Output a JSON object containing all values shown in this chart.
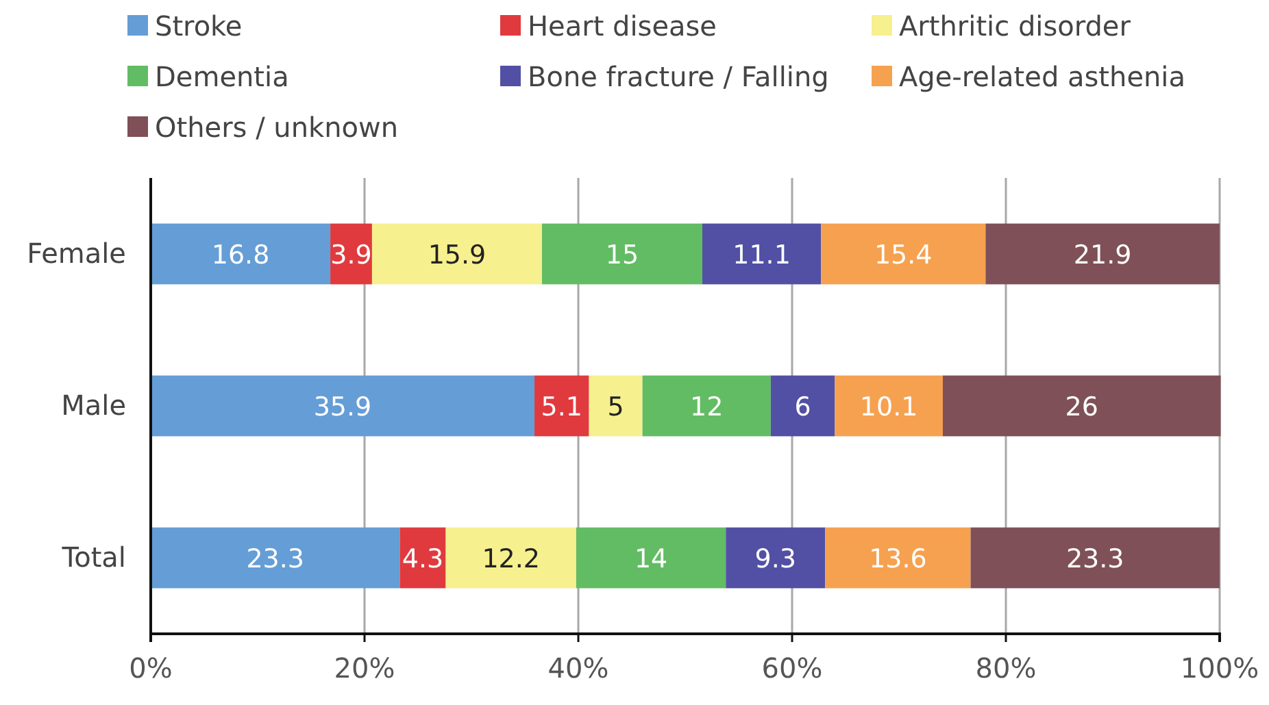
{
  "chart_data": {
    "type": "bar",
    "orientation": "horizontal",
    "stacked": true,
    "categories": [
      "Female",
      "Male",
      "Total"
    ],
    "series": [
      {
        "name": "Stroke",
        "color": "#659dd6",
        "values": [
          16.8,
          35.9,
          23.3
        ]
      },
      {
        "name": "Heart disease",
        "color": "#e03a3e",
        "values": [
          3.9,
          5.1,
          4.3
        ]
      },
      {
        "name": "Arthritic disorder",
        "color": "#f6f08e",
        "values": [
          15.9,
          5,
          12.2
        ]
      },
      {
        "name": "Dementia",
        "color": "#62bc63",
        "values": [
          15,
          12,
          14
        ]
      },
      {
        "name": "Bone fracture / Falling",
        "color": "#5250a4",
        "values": [
          11.1,
          6,
          9.3
        ]
      },
      {
        "name": "Age-related asthenia",
        "color": "#f6a14f",
        "values": [
          15.4,
          10.1,
          13.6
        ]
      },
      {
        "name": "Others / unknown",
        "color": "#7f5057",
        "values": [
          21.9,
          26,
          23.3
        ]
      }
    ],
    "xlim": [
      0,
      100
    ],
    "xticks": [
      {
        "value": 0,
        "label": "0%"
      },
      {
        "value": 20,
        "label": "20%"
      },
      {
        "value": 40,
        "label": "40%"
      },
      {
        "value": 60,
        "label": "60%"
      },
      {
        "value": 80,
        "label": "80%"
      },
      {
        "value": 100,
        "label": "100%"
      }
    ],
    "grid": "x",
    "legend": "top",
    "data_labels": true
  }
}
